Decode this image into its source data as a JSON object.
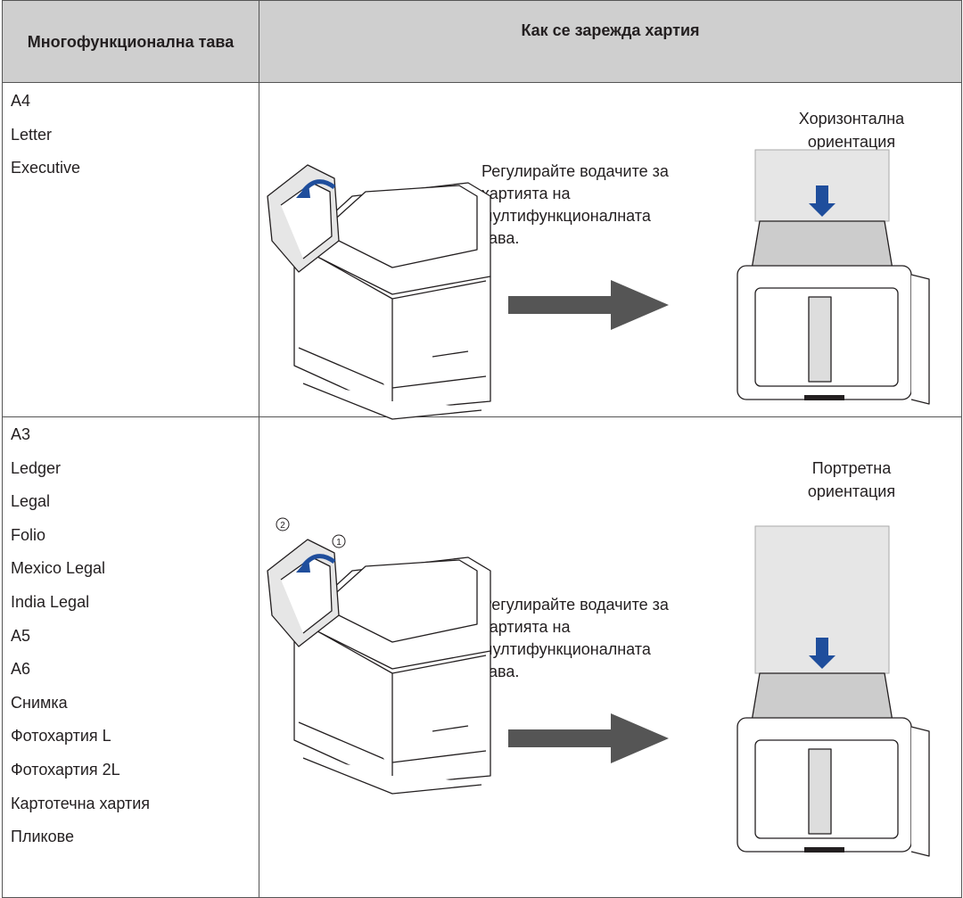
{
  "table": {
    "header": [
      "Многофункционална тава",
      "Как се зарежда хартия"
    ],
    "rows": [
      {
        "sizes": [
          "A4",
          "Letter",
          "Executive"
        ],
        "instruction": "Регулирайте водачите за хартията на мултифункционалната тава.",
        "orientation": "Хоризонтална ориентация"
      },
      {
        "sizes": [
          "A3",
          "Ledger",
          "Legal",
          "Folio",
          "Mexico Legal",
          "India Legal",
          "A5",
          "A6",
          "Снимка",
          "Фотохартия L",
          "Фотохартия 2L",
          "Картотечна хартия",
          "Пликове"
        ],
        "instruction": "Регулирайте водачите за хартията на мултифункционалната тава.",
        "orientation": "Портретна ориентация",
        "callouts": [
          "1",
          "2"
        ]
      }
    ]
  }
}
